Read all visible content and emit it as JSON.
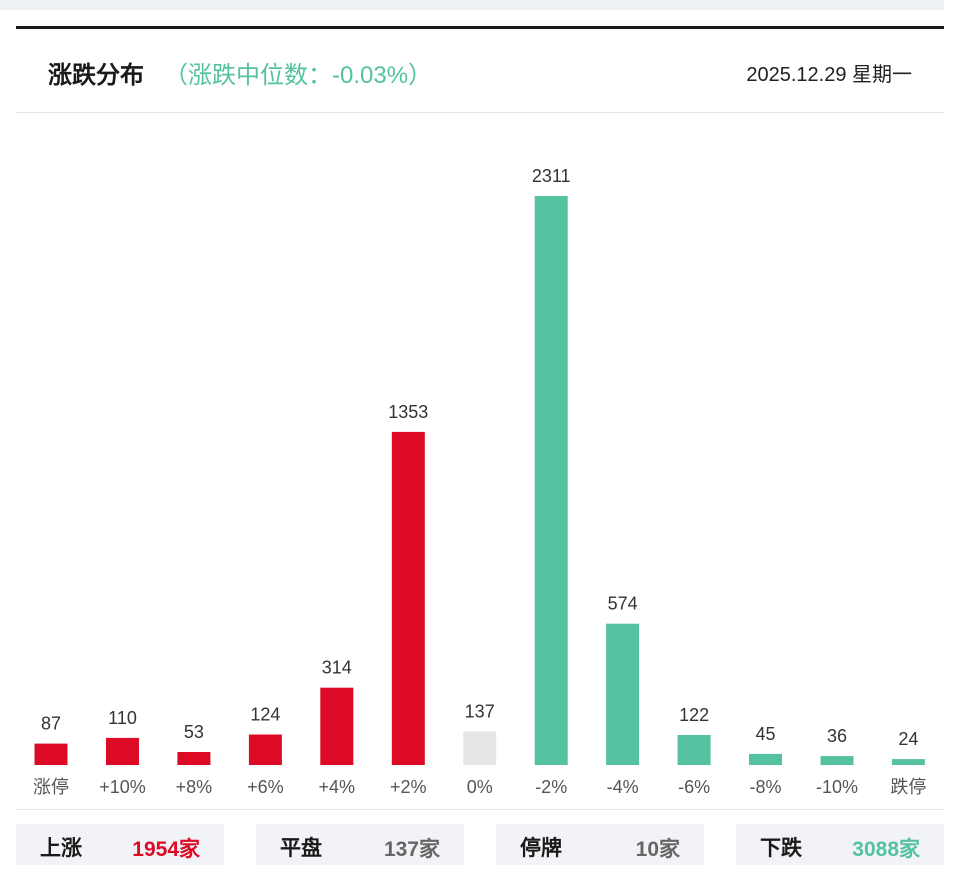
{
  "header": {
    "title": "涨跌分布",
    "subtitle": "（涨跌中位数：-0.03%）",
    "date": "2025.12.29 星期一"
  },
  "colors": {
    "up": "#dc0a25",
    "flat": "#e6e6e6",
    "down": "#54c2a0"
  },
  "chart_data": {
    "type": "bar",
    "categories": [
      "涨停",
      "+10%",
      "+8%",
      "+6%",
      "+4%",
      "+2%",
      "0%",
      "-2%",
      "-4%",
      "-6%",
      "-8%",
      "-10%",
      "跌停"
    ],
    "values": [
      87,
      110,
      53,
      124,
      314,
      1353,
      137,
      2311,
      574,
      122,
      45,
      36,
      24
    ],
    "bar_colors": [
      "up",
      "up",
      "up",
      "up",
      "up",
      "up",
      "flat",
      "down",
      "down",
      "down",
      "down",
      "down",
      "down"
    ],
    "title": "涨跌分布",
    "xlabel": "",
    "ylabel": "",
    "ylim": [
      0,
      2311
    ],
    "grid": false,
    "legend": "none"
  },
  "summary": [
    {
      "label": "上涨",
      "value": "1954家"
    },
    {
      "label": "平盘",
      "value": "137家"
    },
    {
      "label": "停牌",
      "value": "10家"
    },
    {
      "label": "下跌",
      "value": "3088家"
    }
  ]
}
